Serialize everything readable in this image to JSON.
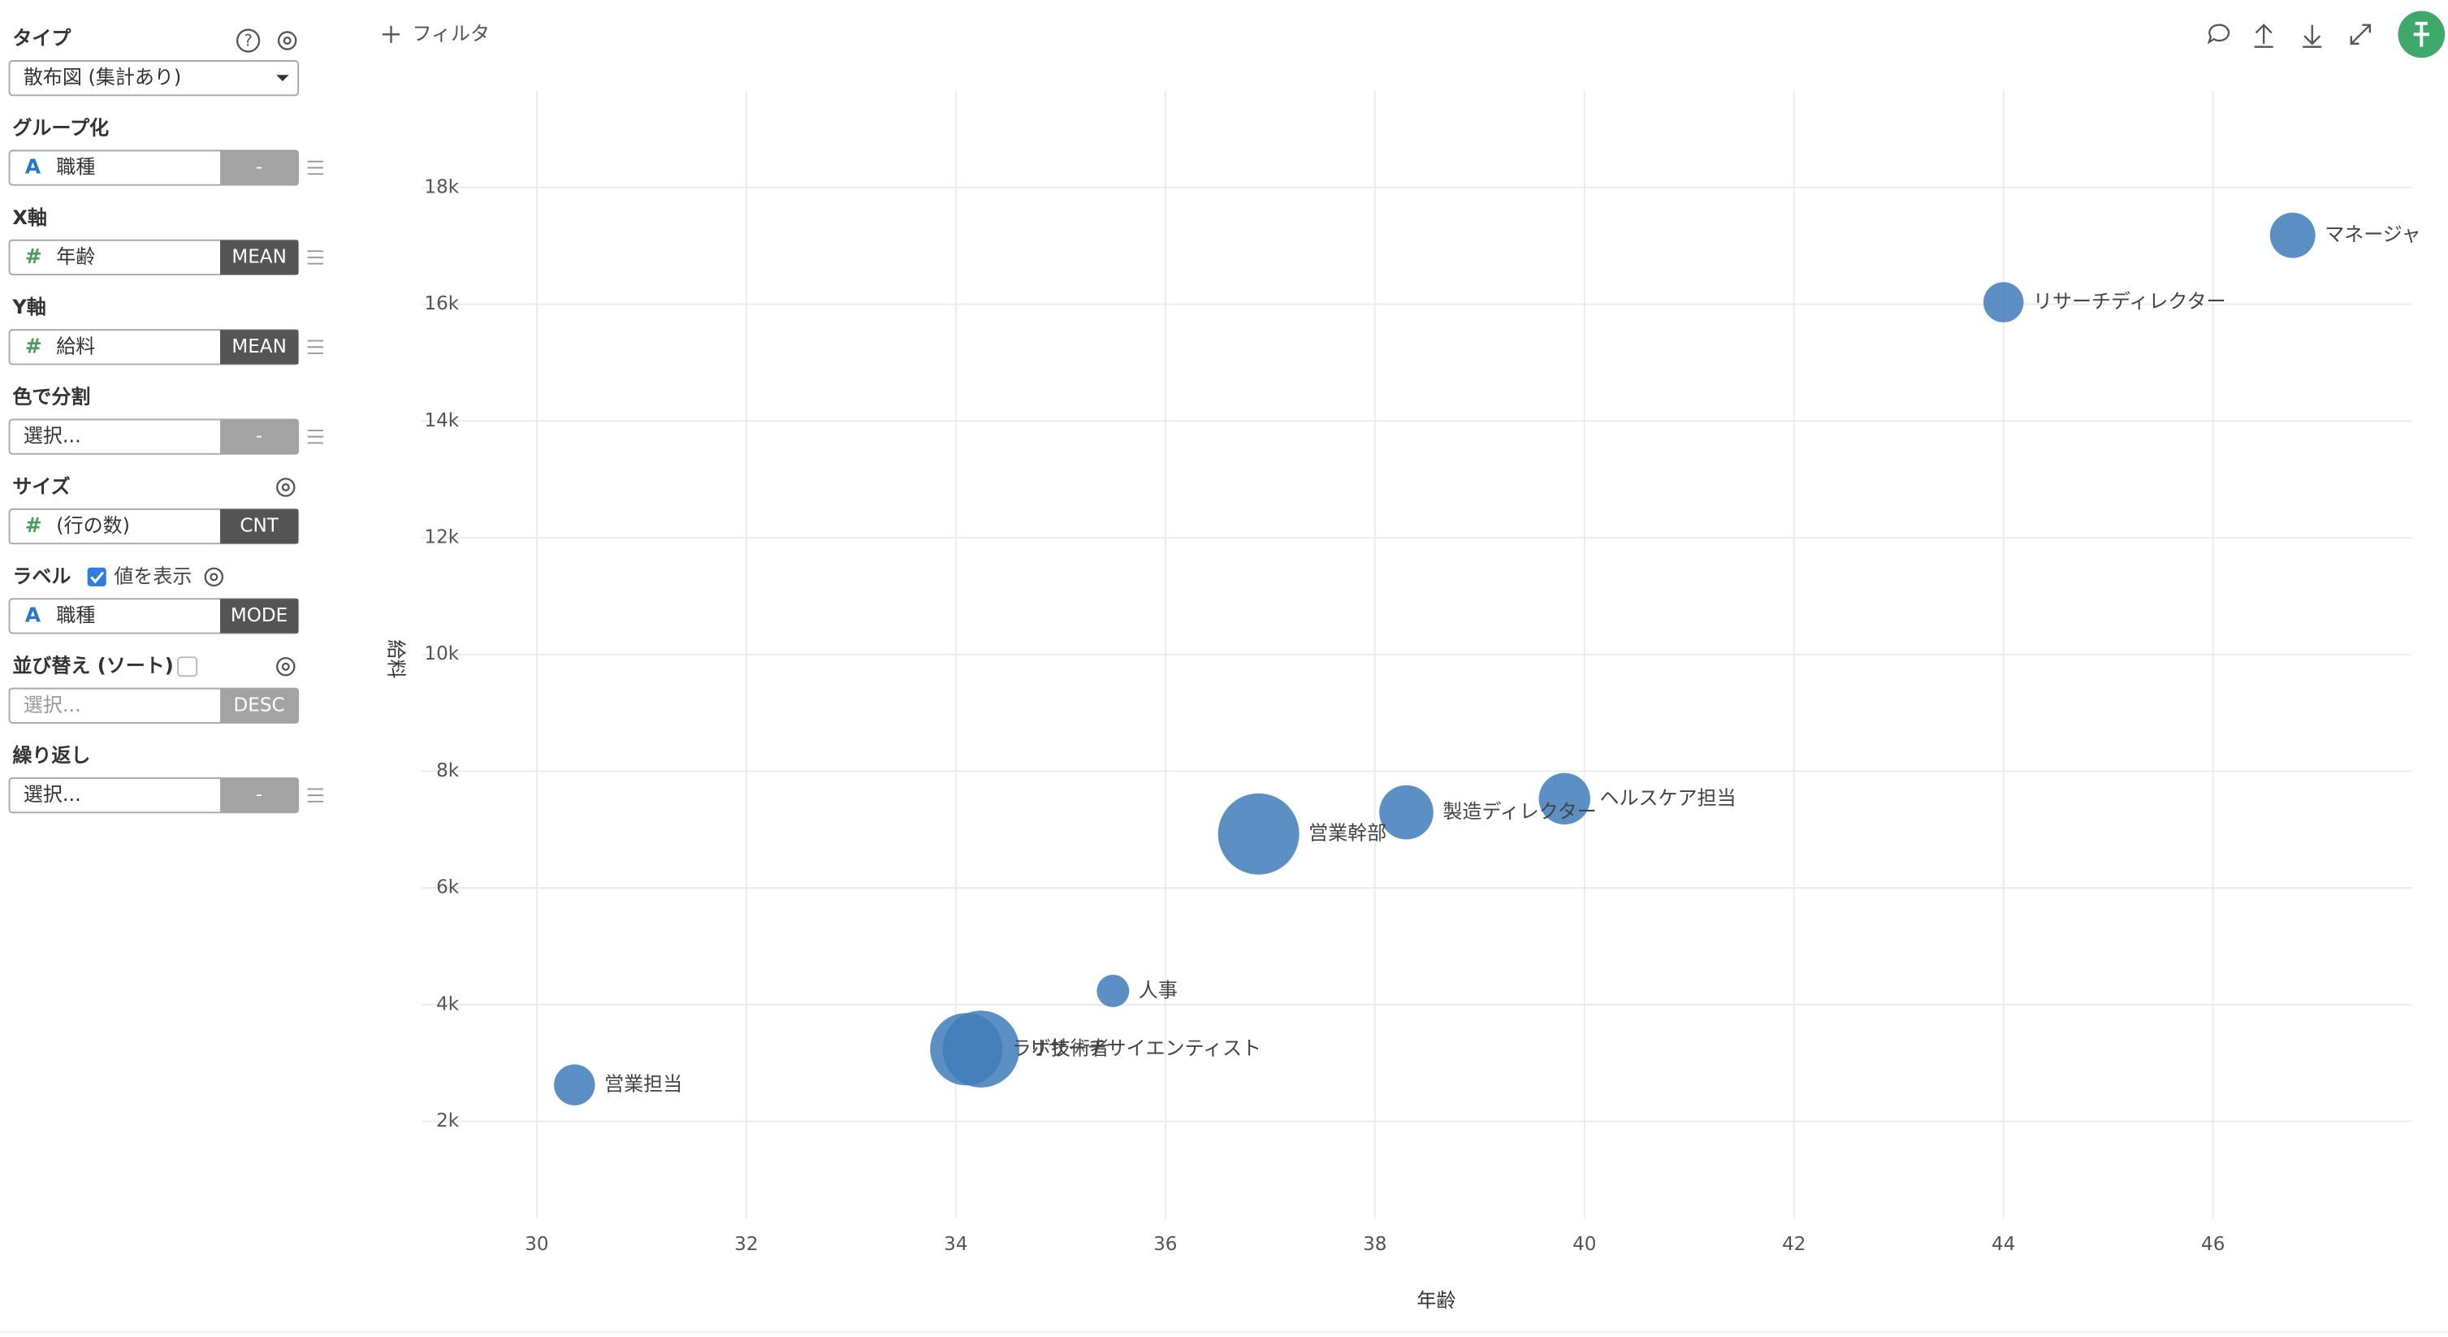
{
  "toolbar": {
    "filter": "フィルタ"
  },
  "sidebar": [
    {
      "title": "タイプ",
      "select": "散布図 (集計あり)"
    },
    {
      "title": "グループ化",
      "icon": "A",
      "field": "職種",
      "agg": "-",
      "agg_dark": false
    },
    {
      "title": "X軸",
      "icon": "#",
      "field": "年齢",
      "agg": "MEAN",
      "agg_dark": true
    },
    {
      "title": "Y軸",
      "icon": "#",
      "field": "給料",
      "agg": "MEAN",
      "agg_dark": true
    },
    {
      "title": "色で分割",
      "field": "選択...",
      "agg": "-",
      "agg_dark": false
    },
    {
      "title": "サイズ",
      "icon": "#",
      "field": "(行の数)",
      "agg": "CNT",
      "agg_dark": true
    },
    {
      "title": "ラベル",
      "checkbox": "値を表示",
      "icon": "A",
      "field": "職種",
      "agg": "MODE",
      "agg_dark": true
    },
    {
      "title": "並び替え (ソート)",
      "field": "選択...",
      "agg": "DESC",
      "agg_dark": false
    },
    {
      "title": "繰り返し",
      "field": "選択...",
      "agg": "-",
      "agg_dark": false
    }
  ],
  "chart_data": {
    "type": "scatter",
    "x_label": "年齢",
    "y_label": "給料",
    "color": "#3f7cba",
    "grid": true,
    "xlim": [
      28.9,
      47.9
    ],
    "ylim": [
      340,
      19660
    ],
    "xticks": [
      30,
      32,
      34,
      36,
      38,
      40,
      42,
      44,
      46
    ],
    "yticks": [
      {
        "value": 2000,
        "label": "2k"
      },
      {
        "value": 4000,
        "label": "4k"
      },
      {
        "value": 6000,
        "label": "6k"
      },
      {
        "value": 8000,
        "label": "8k"
      },
      {
        "value": 10000,
        "label": "10k"
      },
      {
        "value": 12000,
        "label": "12k"
      },
      {
        "value": 14000,
        "label": "14k"
      },
      {
        "value": 16000,
        "label": "16k"
      },
      {
        "value": 18000,
        "label": "18k"
      }
    ],
    "labels": [
      "マネージャ",
      "リサーチディレクター",
      "ヘルスケア担当",
      "製造ディレクター",
      "営業幹部",
      "人事",
      "リサーチサイエンティスト",
      "ラボ技術者",
      "営業担当"
    ],
    "x": [
      46.76,
      44.0,
      39.81,
      38.3,
      36.89,
      35.5,
      34.24,
      34.1,
      30.36
    ],
    "values": [
      17181,
      16033,
      7528,
      7295,
      6924,
      4235,
      3239,
      3237,
      2626
    ],
    "sizes": [
      102,
      80,
      131,
      145,
      326,
      52,
      292,
      259,
      83
    ]
  }
}
